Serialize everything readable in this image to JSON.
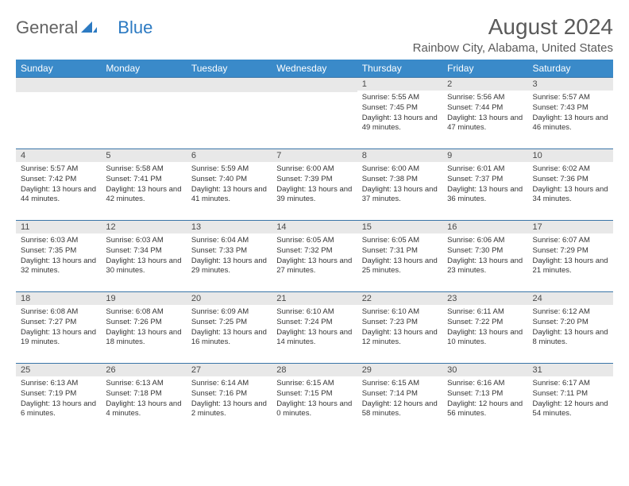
{
  "brand": {
    "text1": "General",
    "text2": "Blue"
  },
  "title": "August 2024",
  "location": "Rainbow City, Alabama, United States",
  "colors": {
    "header_bg": "#3a8ac9",
    "header_fg": "#ffffff",
    "daynum_bg": "#e8e8e8",
    "week_border": "#3a75a8",
    "text": "#353535",
    "title_color": "#5a5a5a",
    "brand_gray": "#636363",
    "brand_blue": "#2c7ac2"
  },
  "days_of_week": [
    "Sunday",
    "Monday",
    "Tuesday",
    "Wednesday",
    "Thursday",
    "Friday",
    "Saturday"
  ],
  "weeks": [
    [
      null,
      null,
      null,
      null,
      {
        "n": "1",
        "sr": "5:55 AM",
        "ss": "7:45 PM",
        "dl": "13 hours and 49 minutes."
      },
      {
        "n": "2",
        "sr": "5:56 AM",
        "ss": "7:44 PM",
        "dl": "13 hours and 47 minutes."
      },
      {
        "n": "3",
        "sr": "5:57 AM",
        "ss": "7:43 PM",
        "dl": "13 hours and 46 minutes."
      }
    ],
    [
      {
        "n": "4",
        "sr": "5:57 AM",
        "ss": "7:42 PM",
        "dl": "13 hours and 44 minutes."
      },
      {
        "n": "5",
        "sr": "5:58 AM",
        "ss": "7:41 PM",
        "dl": "13 hours and 42 minutes."
      },
      {
        "n": "6",
        "sr": "5:59 AM",
        "ss": "7:40 PM",
        "dl": "13 hours and 41 minutes."
      },
      {
        "n": "7",
        "sr": "6:00 AM",
        "ss": "7:39 PM",
        "dl": "13 hours and 39 minutes."
      },
      {
        "n": "8",
        "sr": "6:00 AM",
        "ss": "7:38 PM",
        "dl": "13 hours and 37 minutes."
      },
      {
        "n": "9",
        "sr": "6:01 AM",
        "ss": "7:37 PM",
        "dl": "13 hours and 36 minutes."
      },
      {
        "n": "10",
        "sr": "6:02 AM",
        "ss": "7:36 PM",
        "dl": "13 hours and 34 minutes."
      }
    ],
    [
      {
        "n": "11",
        "sr": "6:03 AM",
        "ss": "7:35 PM",
        "dl": "13 hours and 32 minutes."
      },
      {
        "n": "12",
        "sr": "6:03 AM",
        "ss": "7:34 PM",
        "dl": "13 hours and 30 minutes."
      },
      {
        "n": "13",
        "sr": "6:04 AM",
        "ss": "7:33 PM",
        "dl": "13 hours and 29 minutes."
      },
      {
        "n": "14",
        "sr": "6:05 AM",
        "ss": "7:32 PM",
        "dl": "13 hours and 27 minutes."
      },
      {
        "n": "15",
        "sr": "6:05 AM",
        "ss": "7:31 PM",
        "dl": "13 hours and 25 minutes."
      },
      {
        "n": "16",
        "sr": "6:06 AM",
        "ss": "7:30 PM",
        "dl": "13 hours and 23 minutes."
      },
      {
        "n": "17",
        "sr": "6:07 AM",
        "ss": "7:29 PM",
        "dl": "13 hours and 21 minutes."
      }
    ],
    [
      {
        "n": "18",
        "sr": "6:08 AM",
        "ss": "7:27 PM",
        "dl": "13 hours and 19 minutes."
      },
      {
        "n": "19",
        "sr": "6:08 AM",
        "ss": "7:26 PM",
        "dl": "13 hours and 18 minutes."
      },
      {
        "n": "20",
        "sr": "6:09 AM",
        "ss": "7:25 PM",
        "dl": "13 hours and 16 minutes."
      },
      {
        "n": "21",
        "sr": "6:10 AM",
        "ss": "7:24 PM",
        "dl": "13 hours and 14 minutes."
      },
      {
        "n": "22",
        "sr": "6:10 AM",
        "ss": "7:23 PM",
        "dl": "13 hours and 12 minutes."
      },
      {
        "n": "23",
        "sr": "6:11 AM",
        "ss": "7:22 PM",
        "dl": "13 hours and 10 minutes."
      },
      {
        "n": "24",
        "sr": "6:12 AM",
        "ss": "7:20 PM",
        "dl": "13 hours and 8 minutes."
      }
    ],
    [
      {
        "n": "25",
        "sr": "6:13 AM",
        "ss": "7:19 PM",
        "dl": "13 hours and 6 minutes."
      },
      {
        "n": "26",
        "sr": "6:13 AM",
        "ss": "7:18 PM",
        "dl": "13 hours and 4 minutes."
      },
      {
        "n": "27",
        "sr": "6:14 AM",
        "ss": "7:16 PM",
        "dl": "13 hours and 2 minutes."
      },
      {
        "n": "28",
        "sr": "6:15 AM",
        "ss": "7:15 PM",
        "dl": "13 hours and 0 minutes."
      },
      {
        "n": "29",
        "sr": "6:15 AM",
        "ss": "7:14 PM",
        "dl": "12 hours and 58 minutes."
      },
      {
        "n": "30",
        "sr": "6:16 AM",
        "ss": "7:13 PM",
        "dl": "12 hours and 56 minutes."
      },
      {
        "n": "31",
        "sr": "6:17 AM",
        "ss": "7:11 PM",
        "dl": "12 hours and 54 minutes."
      }
    ]
  ],
  "labels": {
    "sunrise": "Sunrise:",
    "sunset": "Sunset:",
    "daylight": "Daylight:"
  }
}
